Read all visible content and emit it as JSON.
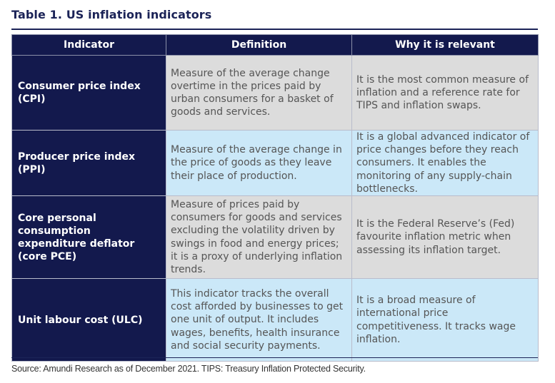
{
  "title": "Table 1. US inflation indicators",
  "table": {
    "headers": [
      "Indicator",
      "Definition",
      "Why it is relevant"
    ],
    "rows": [
      {
        "indicator": "Consumer price index (CPI)",
        "definition": "Measure of the average change overtime in the prices paid by urban consumers for a basket of goods and services.",
        "relevance": "It is the most common measure of inflation and a reference rate for TIPS and inflation swaps."
      },
      {
        "indicator": "Producer price index (PPI)",
        "definition": "Measure of the average change in the price of goods as they leave their place of production.",
        "relevance": "It is a global advanced indicator of price changes before they reach consumers. It enables the monitoring of any supply-chain bottlenecks."
      },
      {
        "indicator": "Core personal consumption expenditure deflator (core PCE)",
        "definition": "Measure of prices paid by consumers for goods and services excluding the volatility driven by swings in food and energy prices; it is a proxy of underlying inflation trends.",
        "relevance": "It is the Federal Reserve’s (Fed) favourite inflation metric when assessing its inflation target."
      },
      {
        "indicator": "Unit labour cost (ULC)",
        "definition": "This indicator tracks the overall cost afforded by businesses to get one unit of output. It includes wages, benefits, health insurance and social security payments.",
        "relevance": "It is a broad measure of international price competitiveness. It tracks wage inflation."
      }
    ]
  },
  "source": "Source: Amundi Research as of December 2021. TIPS: Treasury Inflation Protected Security.",
  "colors": {
    "navy": "#13194d",
    "grey_cell": "#dcdcdc",
    "blue_cell": "#cbe8f8"
  }
}
